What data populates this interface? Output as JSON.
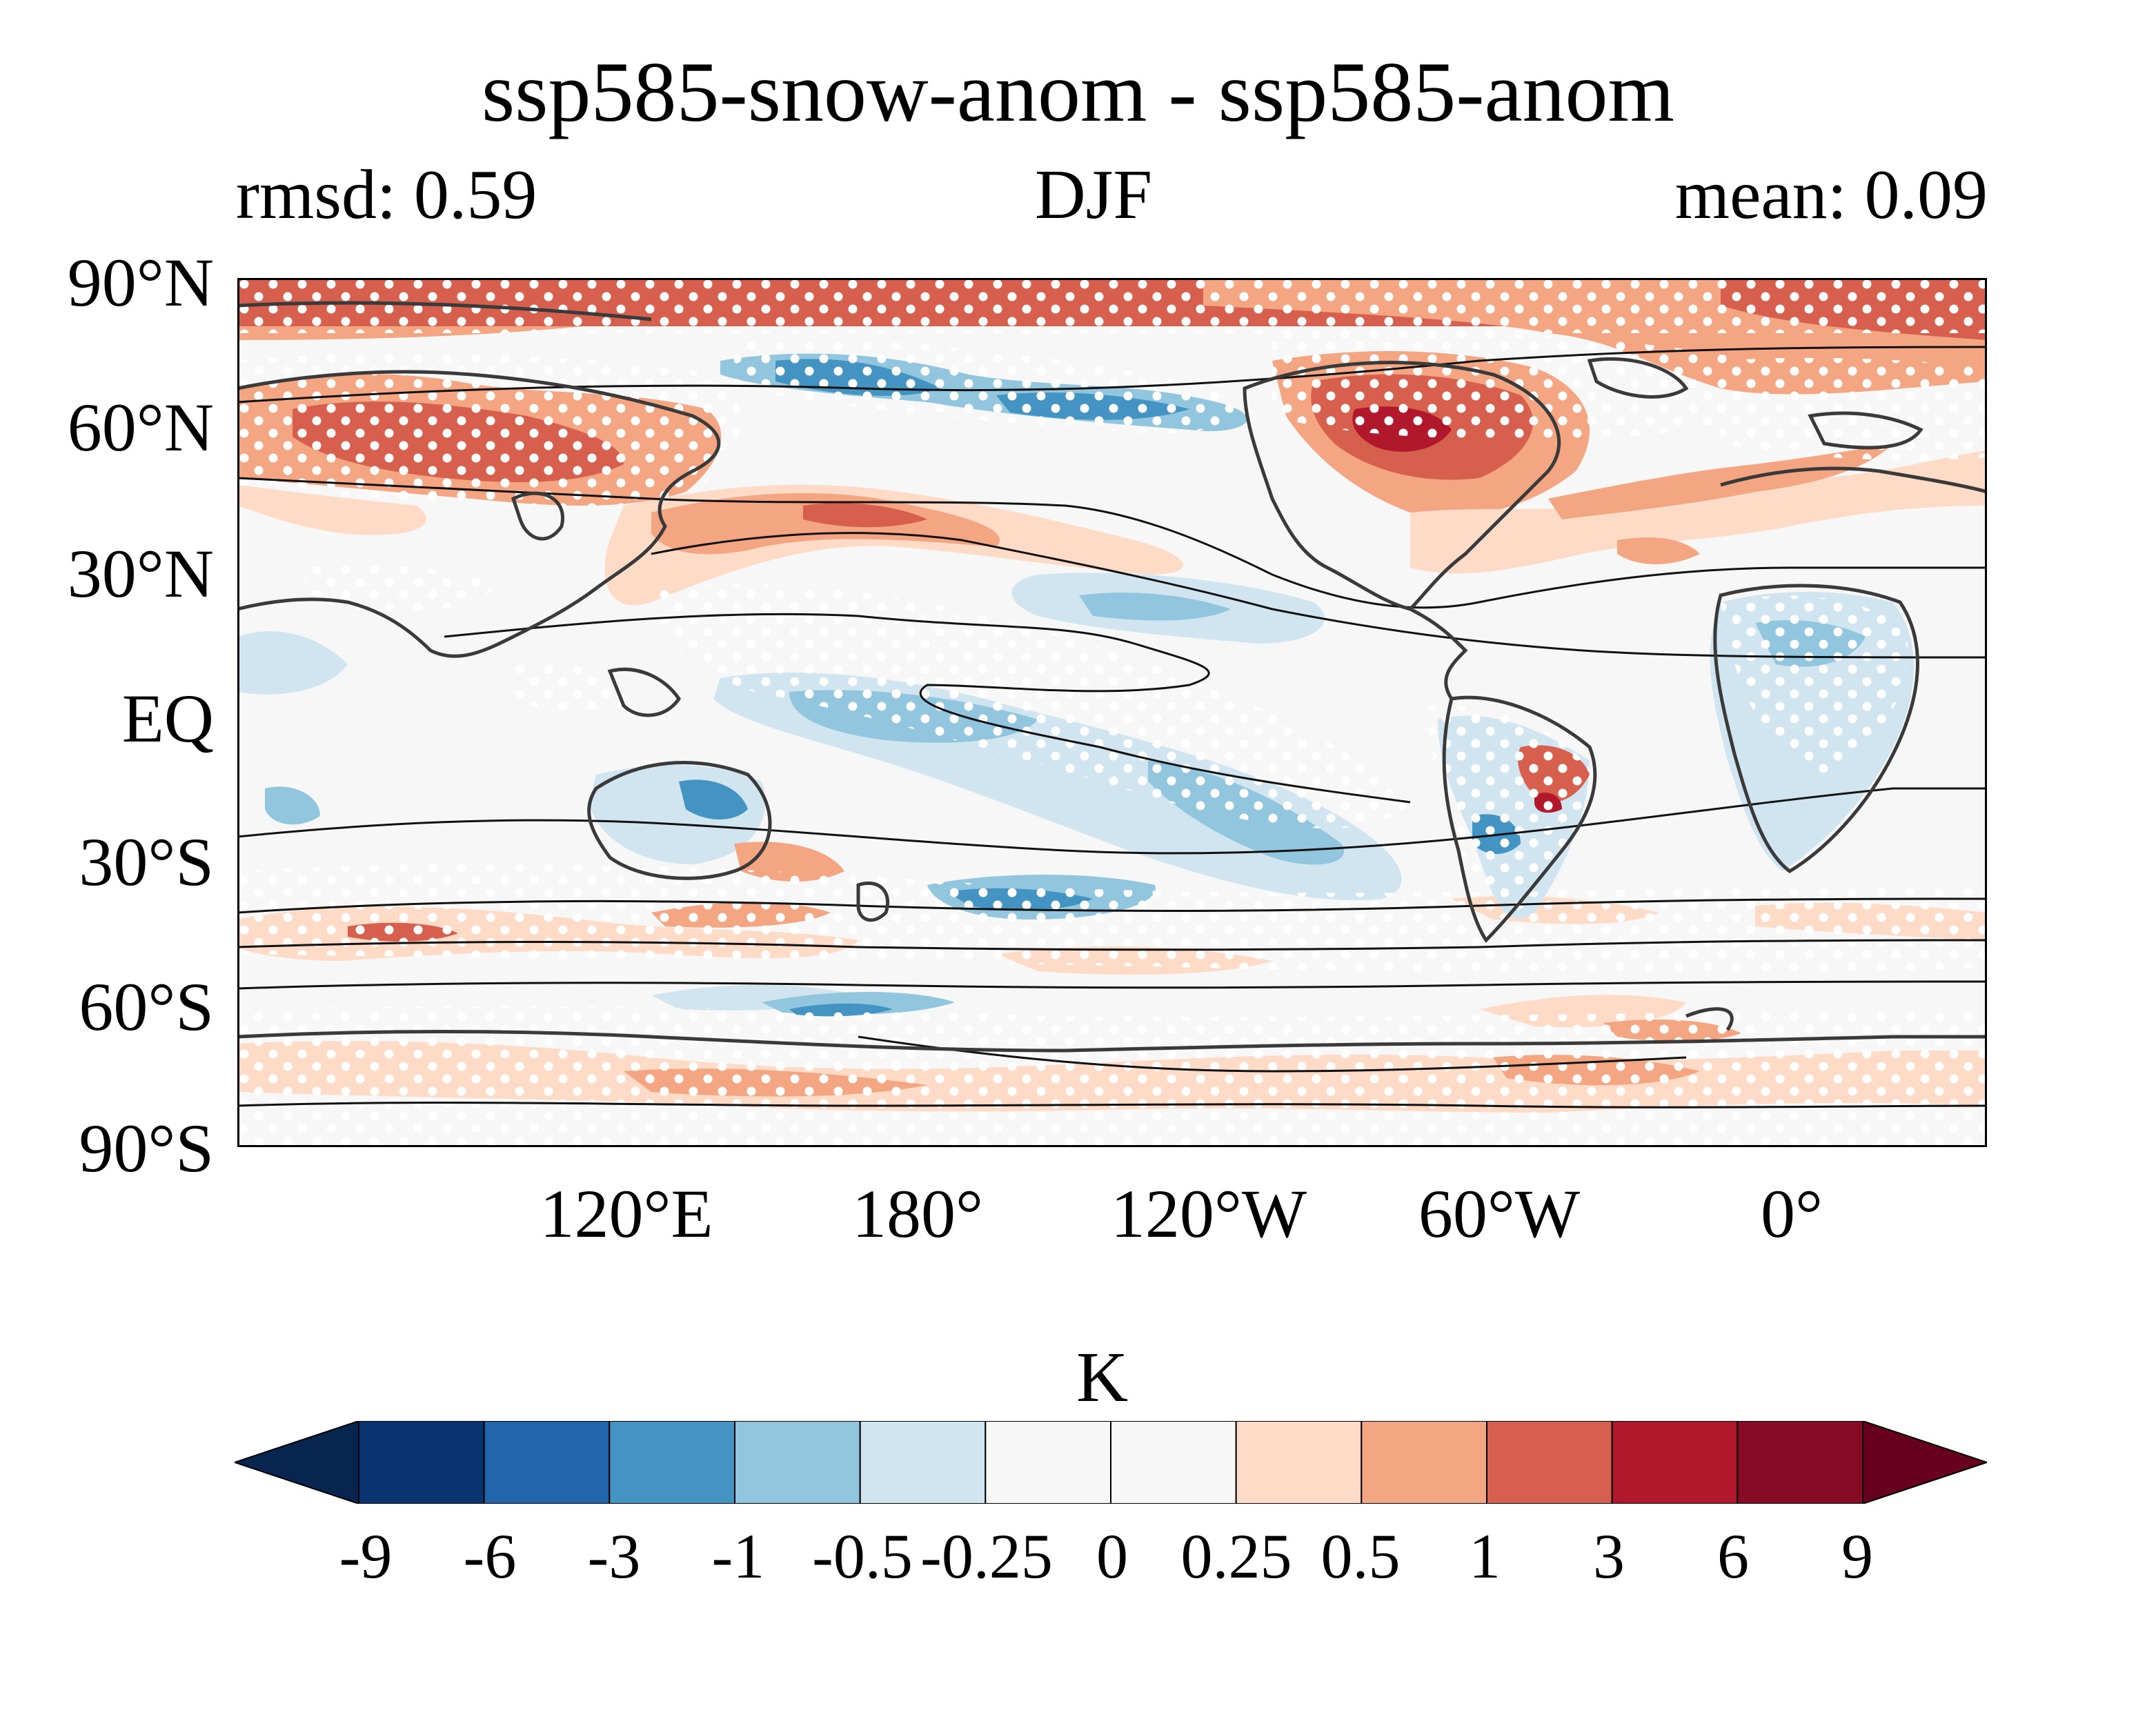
{
  "title": "ssp585-snow-anom - ssp585-anom",
  "stats": {
    "rmsd": "rmsd: 0.59",
    "season": "DJF",
    "mean": "mean: 0.09"
  },
  "axes": {
    "lat_labels": [
      "90°N",
      "60°N",
      "30°N",
      "EQ",
      "30°S",
      "60°S",
      "90°S"
    ],
    "lon_labels": [
      "120°E",
      "180°",
      "120°W",
      "60°W",
      "0°"
    ]
  },
  "colorbar": {
    "units": "K",
    "ticks": [
      "-9",
      "-6",
      "-3",
      "-1",
      "-0.5",
      "-0.25",
      "0",
      "0.25",
      "0.5",
      "1",
      "3",
      "6",
      "9"
    ],
    "colors": [
      "#08254f",
      "#0a3470",
      "#2166ac",
      "#4393c3",
      "#92c5de",
      "#d1e5f0",
      "#f7f7f7",
      "#f7f7f7",
      "#fddbc7",
      "#f4a582",
      "#d6604d",
      "#b2182b",
      "#870b24",
      "#67001f"
    ]
  },
  "colors": {
    "ocean_neutral": "#f7f7f7",
    "coast": "#3a3a3a",
    "contour": "#111111",
    "stipple": "#ffffff"
  }
}
